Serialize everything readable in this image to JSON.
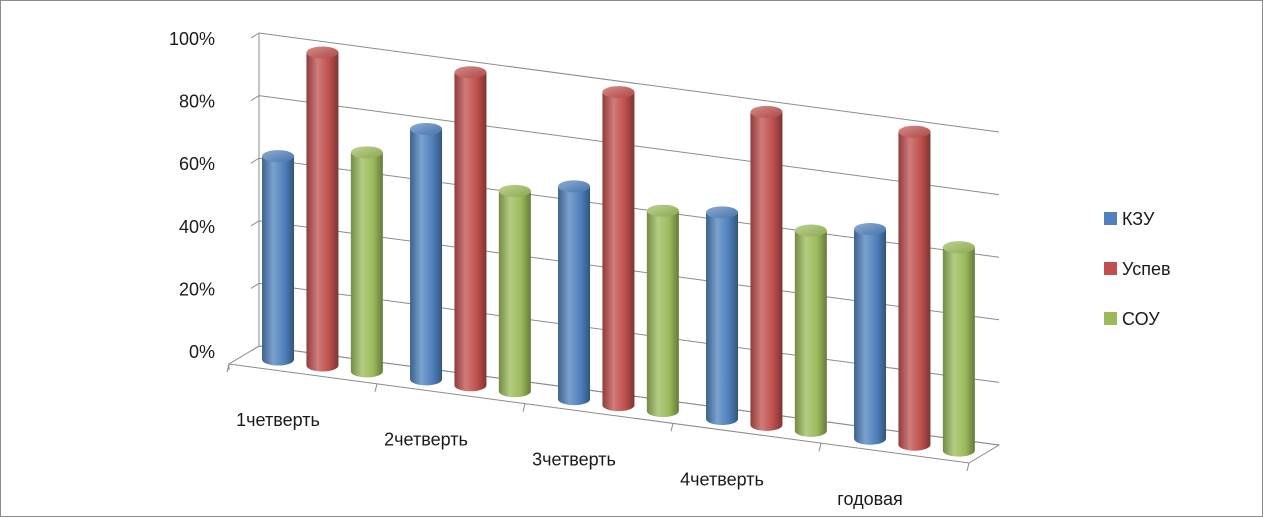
{
  "chart_data": {
    "type": "bar",
    "style": "3d-cylinder",
    "categories": [
      "1четверть",
      "2четверть",
      "3четверть",
      "4четверть",
      "годовая"
    ],
    "series": [
      {
        "name": "КЗУ",
        "color": "#4f81bd",
        "values": [
          0.65,
          0.8,
          0.68,
          0.66,
          0.67
        ]
      },
      {
        "name": "Успев",
        "color": "#c0504d",
        "values": [
          1.0,
          1.0,
          1.0,
          1.0,
          1.0
        ]
      },
      {
        "name": "СОУ",
        "color": "#9bbb59",
        "values": [
          0.7,
          0.64,
          0.64,
          0.64,
          0.65
        ]
      }
    ],
    "yticks": [
      "0%",
      "20%",
      "40%",
      "60%",
      "80%",
      "100%"
    ],
    "ylim": [
      0,
      1
    ],
    "legend_position": "right",
    "grid": true
  }
}
